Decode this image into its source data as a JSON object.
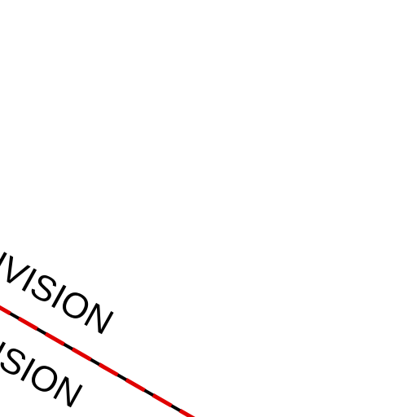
{
  "labels": [
    "DIVISION",
    "DIVISION"
  ]
}
